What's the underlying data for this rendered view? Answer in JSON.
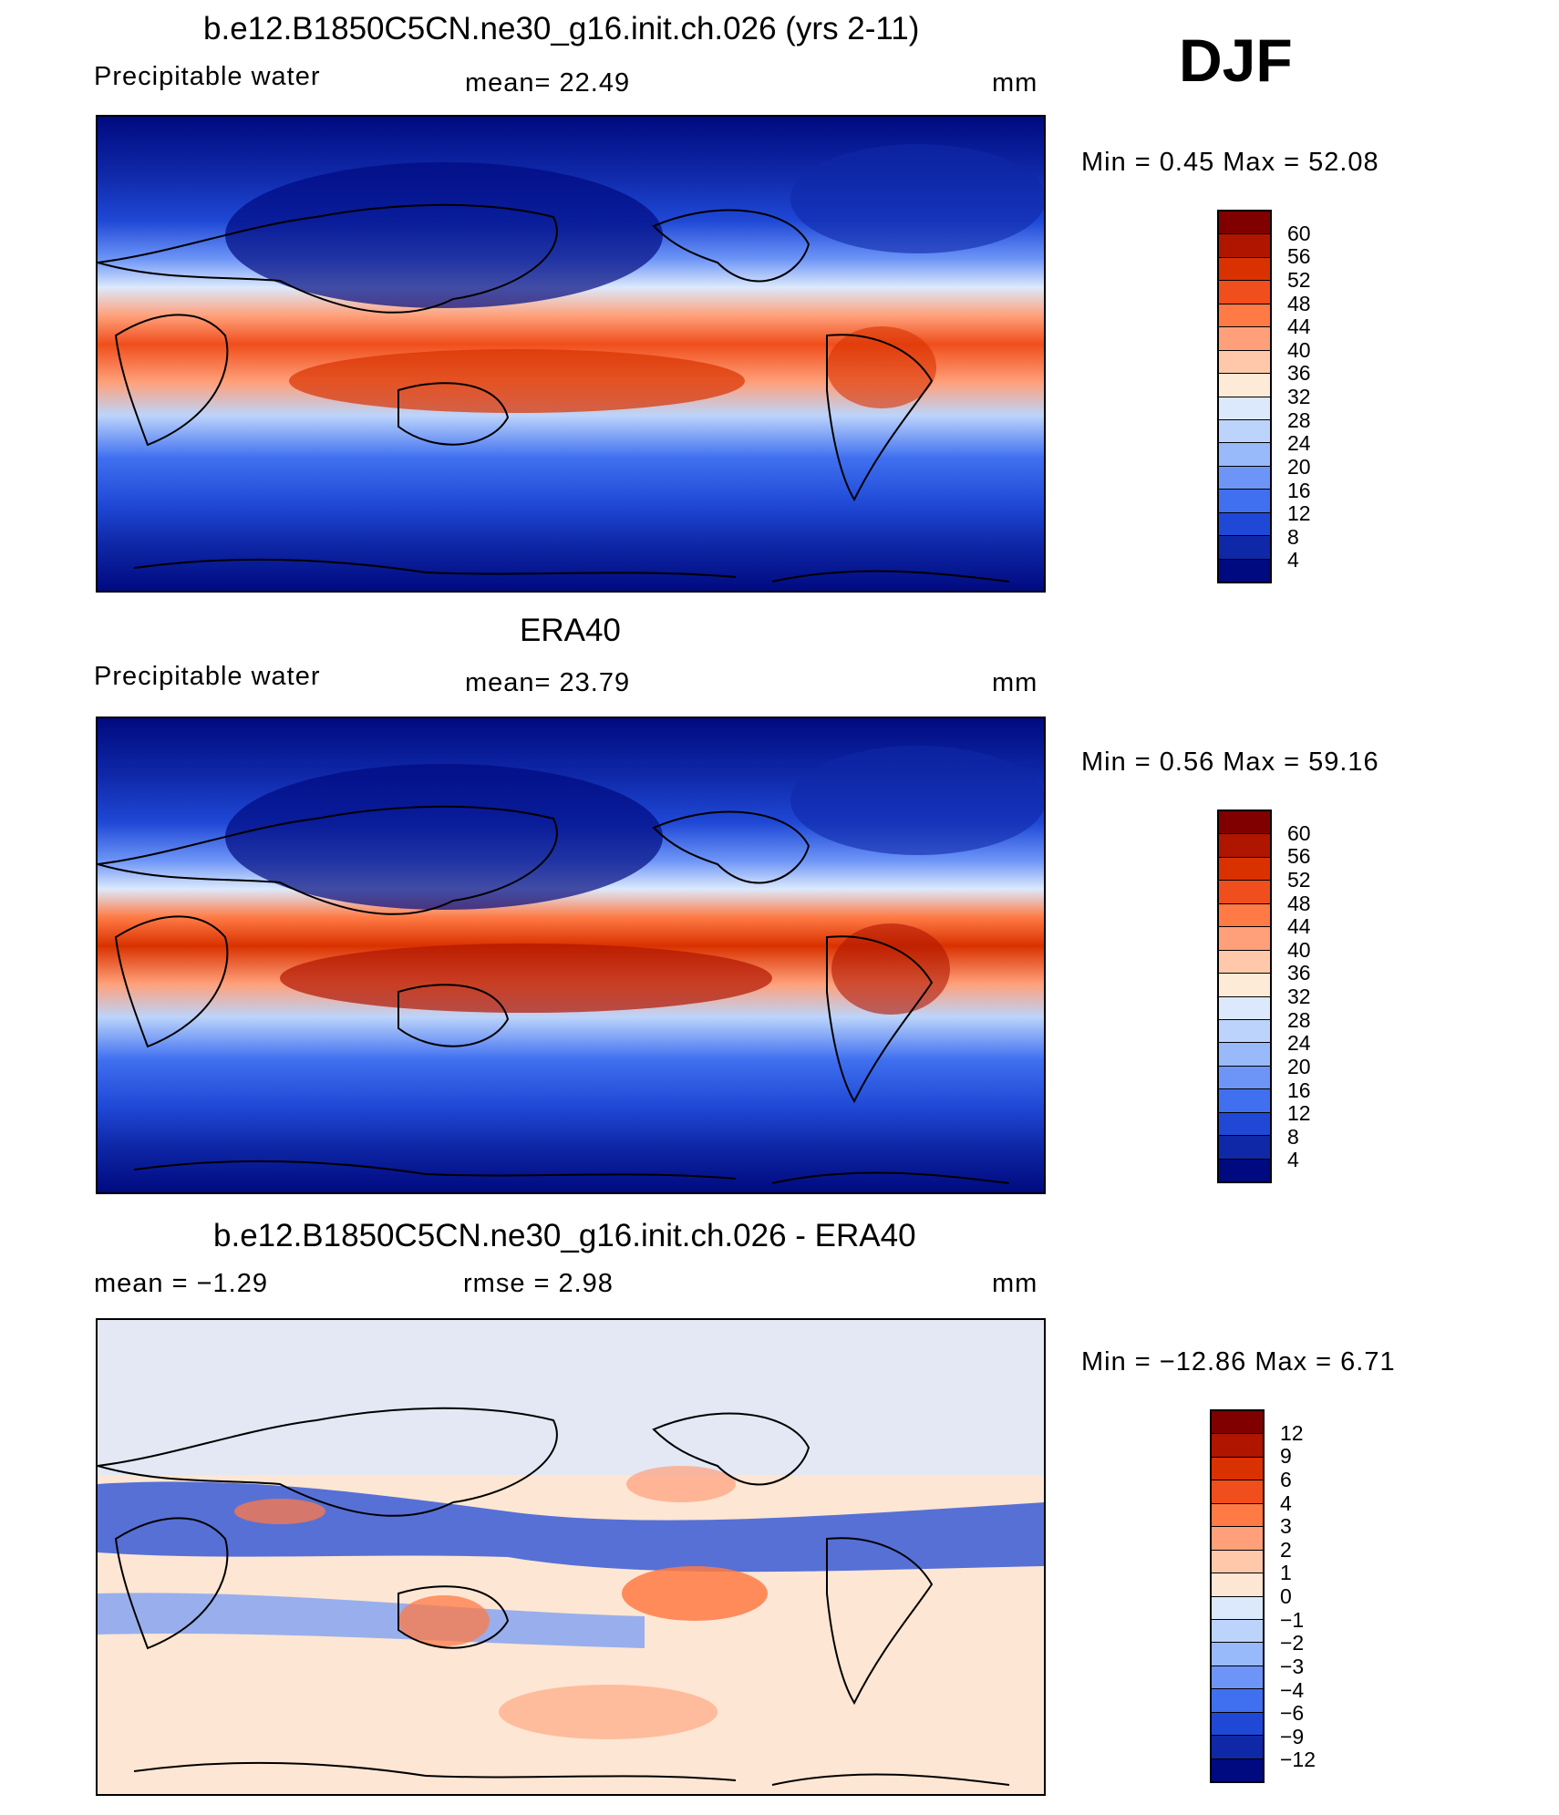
{
  "season": "DJF",
  "panels": [
    {
      "id": "model",
      "title": "b.e12.B1850C5CN.ne30_g16.init.ch.026 (yrs 2-11)",
      "left": "Precipitable water",
      "mid": "mean=   22.49",
      "right": "mm",
      "minmax": "Min =     0.45  Max =    52.08",
      "colorbar_labels": [
        "60",
        "56",
        "52",
        "48",
        "44",
        "40",
        "36",
        "32",
        "28",
        "24",
        "20",
        "16",
        "12",
        "8",
        "4"
      ]
    },
    {
      "id": "obs",
      "title": "ERA40",
      "left": "Precipitable water",
      "mid": "mean=   23.79",
      "right": "mm",
      "minmax": "Min =     0.56  Max =    59.16",
      "colorbar_labels": [
        "60",
        "56",
        "52",
        "48",
        "44",
        "40",
        "36",
        "32",
        "28",
        "24",
        "20",
        "16",
        "12",
        "8",
        "4"
      ]
    },
    {
      "id": "diff",
      "title": "b.e12.B1850C5CN.ne30_g16.init.ch.026 - ERA40",
      "left": "mean =   −1.29",
      "mid": "rmse =    2.98",
      "right": "mm",
      "minmax": "Min =  −12.86  Max =     6.71",
      "colorbar_labels": [
        "12",
        "9",
        "6",
        "4",
        "3",
        "2",
        "1",
        "0",
        "−1",
        "−2",
        "−3",
        "−4",
        "−6",
        "−9",
        "−12"
      ]
    }
  ],
  "colors": {
    "scale_abs": [
      "#800000",
      "#b01500",
      "#d93200",
      "#f04e1c",
      "#ff7a45",
      "#ffa07a",
      "#ffc8aa",
      "#fdebd7",
      "#dce9fc",
      "#bcd4fb",
      "#98b9fa",
      "#6d95f7",
      "#4070f0",
      "#1f48d6",
      "#0f28a8",
      "#000a80"
    ],
    "scale_diff": [
      "#800000",
      "#b01500",
      "#d93200",
      "#f04e1c",
      "#ff7a45",
      "#ffa07a",
      "#ffc8aa",
      "#fde6d3",
      "#dce9fc",
      "#bcd4fb",
      "#98b9fa",
      "#6d95f7",
      "#4070f0",
      "#1f48d6",
      "#0f28a8",
      "#000a80"
    ]
  }
}
